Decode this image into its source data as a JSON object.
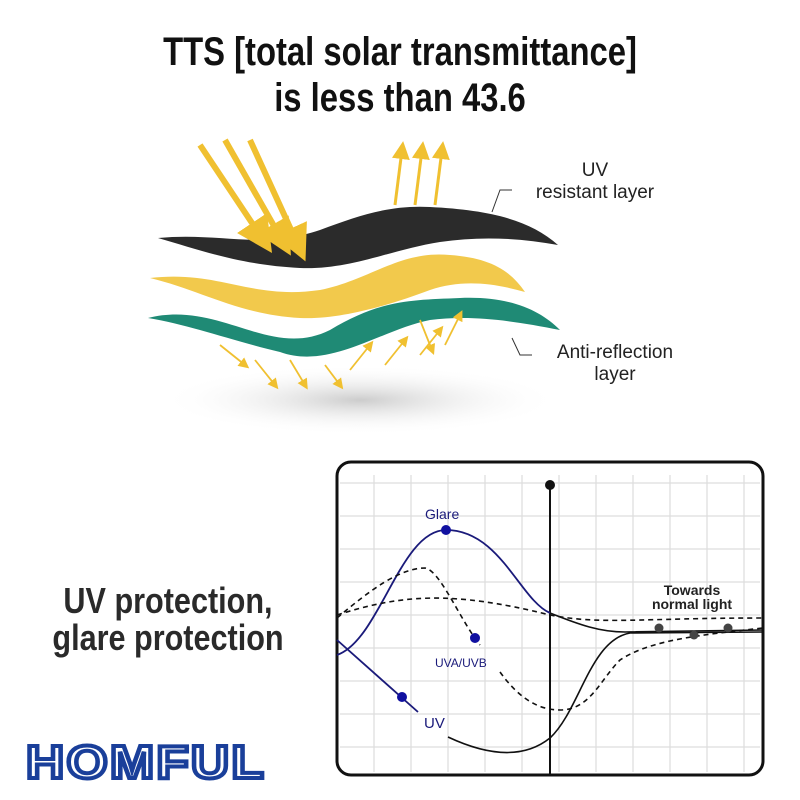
{
  "headline": {
    "line1": "TTS [total solar transmittance]",
    "line2": "is less than 43.6"
  },
  "layers": {
    "uv_label": {
      "line1": "UV",
      "line2": "resistant layer"
    },
    "anti_label": {
      "line1": "Anti-reflection",
      "line2": "layer"
    },
    "colors": {
      "top": "#2b2b2b",
      "middle": "#f2c94c",
      "bottom": "#1f8a75",
      "arrows": "#f0c030"
    }
  },
  "side_text": {
    "line1": "UV protection,",
    "line2": "glare protection"
  },
  "chart": {
    "glare_label": "Glare",
    "uva_label": "UVA/UVB",
    "uv_label": "UV",
    "normal_label": {
      "line1": "Towards",
      "line2": "normal light"
    },
    "colors": {
      "curve": "#1a1a7a",
      "marker": "#1010a0",
      "normal": "#111111"
    }
  },
  "brand": {
    "logo": "HOMFUL",
    "color": "#1a3f9a"
  }
}
